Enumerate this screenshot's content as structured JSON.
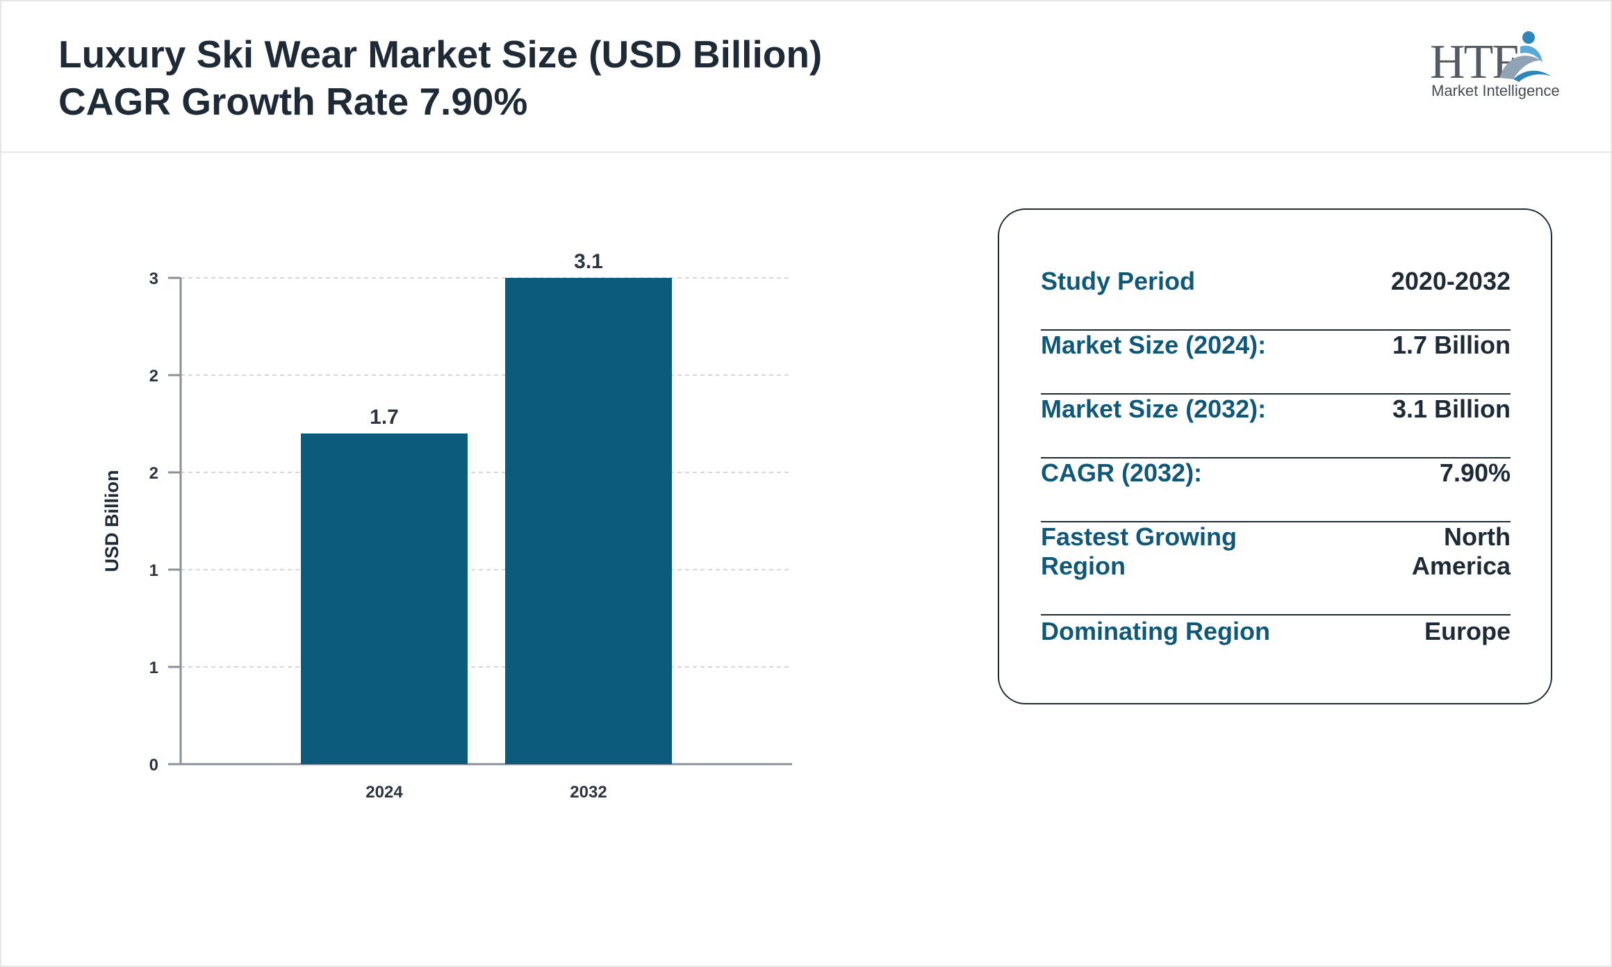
{
  "header": {
    "title_line1": "Luxury Ski Wear Market Size (USD Billion)",
    "title_line2": "CAGR Growth Rate 7.90%",
    "logo_text": "HTF",
    "logo_subtext": "Market Intelligence"
  },
  "chart_data": {
    "type": "bar",
    "categories": [
      "2024",
      "2032"
    ],
    "values": [
      1.7,
      3.1
    ],
    "data_labels": [
      "1.7",
      "3.1"
    ],
    "ylabel": "USD Billion",
    "ylim": [
      0,
      2.5
    ],
    "y_tick_labels": [
      "0",
      "1",
      "1",
      "2",
      "2",
      "3"
    ],
    "grid": true,
    "bar_color": "#0d5b7c"
  },
  "info": {
    "rows": [
      {
        "label": "Study Period",
        "value": "2020-2032"
      },
      {
        "label": "Market Size (2024):",
        "value": "1.7 Billion"
      },
      {
        "label": "Market Size (2032):",
        "value": "3.1 Billion"
      },
      {
        "label": "CAGR (2032):",
        "value": "7.90%"
      },
      {
        "label": "Fastest Growing Region",
        "value": "North America"
      },
      {
        "label": "Dominating Region",
        "value": "Europe"
      }
    ]
  },
  "colors": {
    "accent": "#0f5878",
    "text": "#1f2a37",
    "bar": "#0d5b7c"
  }
}
